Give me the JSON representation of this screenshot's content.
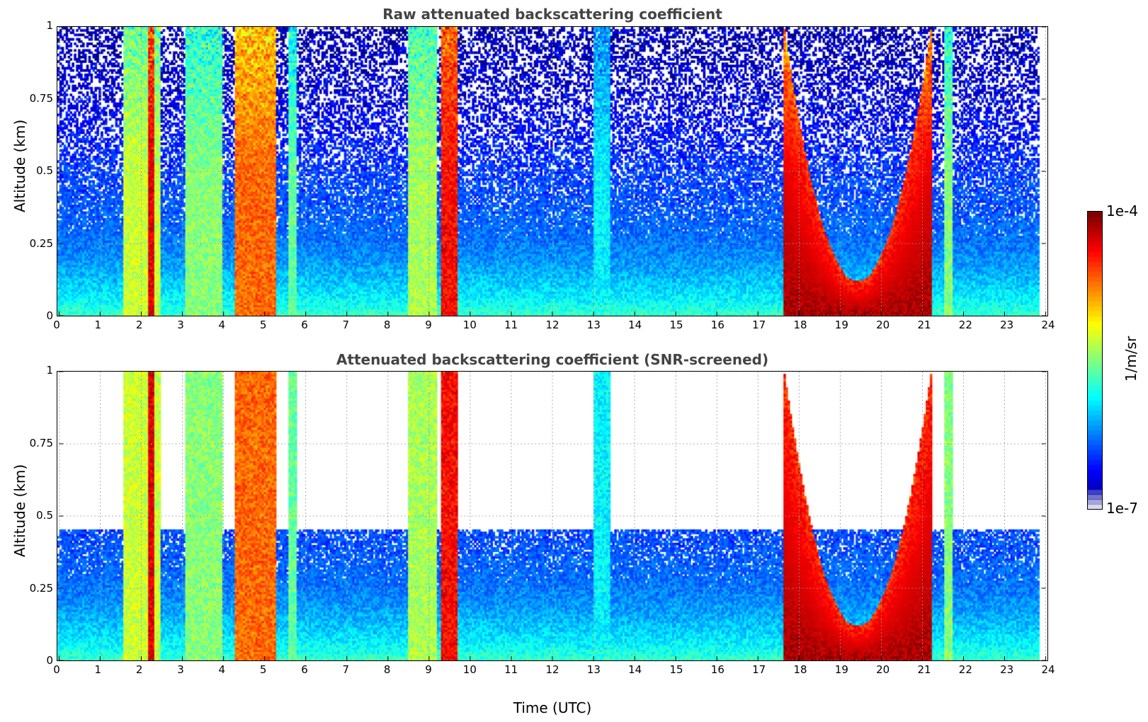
{
  "colors": {
    "jet": [
      "#00007f",
      "#0000ff",
      "#0080ff",
      "#00ffff",
      "#80ff80",
      "#ffff00",
      "#ff8000",
      "#ff0000",
      "#7f0000"
    ],
    "background": "#ffffff",
    "title_color": "#444444"
  },
  "chart_data": [
    {
      "type": "heatmap",
      "title": "Raw attenuated backscattering coefficient",
      "xlabel": "",
      "ylabel": "Altitude (km)",
      "xlim": [
        0,
        24
      ],
      "ylim": [
        0,
        1
      ],
      "xticks": [
        "0",
        "1",
        "2",
        "3",
        "4",
        "5",
        "6",
        "7",
        "8",
        "9",
        "10",
        "11",
        "12",
        "13",
        "14",
        "15",
        "16",
        "17",
        "18",
        "19",
        "20",
        "21",
        "22",
        "23",
        "24"
      ],
      "yticks": [
        "0",
        "0.25",
        "0.5",
        "0.75",
        "1"
      ],
      "grid": true,
      "screened": false,
      "data_end_hour": 23.8,
      "features": [
        {
          "kind": "aerosol_column",
          "x_start": 1.6,
          "x_end": 2.5,
          "log_level": -5.2
        },
        {
          "kind": "aerosol_column",
          "x_start": 2.2,
          "x_end": 2.35,
          "log_level": -4.2
        },
        {
          "kind": "aerosol_column",
          "x_start": 3.1,
          "x_end": 4.0,
          "log_level": -5.4
        },
        {
          "kind": "aerosol_column",
          "x_start": 4.3,
          "x_end": 5.3,
          "log_level": -4.6
        },
        {
          "kind": "aerosol_column",
          "x_start": 5.6,
          "x_end": 5.8,
          "log_level": -5.5
        },
        {
          "kind": "aerosol_column",
          "x_start": 8.5,
          "x_end": 9.2,
          "log_level": -5.3
        },
        {
          "kind": "aerosol_column",
          "x_start": 9.3,
          "x_end": 9.7,
          "log_level": -4.3
        },
        {
          "kind": "aerosol_column",
          "x_start": 21.5,
          "x_end": 21.7,
          "log_level": -5.4
        },
        {
          "kind": "cloud_bowl",
          "x_start": 17.6,
          "x_end": 21.2,
          "log_level": -4.1
        },
        {
          "kind": "thin_layer",
          "x_start": 13.0,
          "x_end": 13.4,
          "log_level": -5.9
        }
      ]
    },
    {
      "type": "heatmap",
      "title": "Attenuated backscattering coefficient (SNR-screened)",
      "xlabel": "Time (UTC)",
      "ylabel": "Altitude (km)",
      "xlim": [
        0,
        24
      ],
      "ylim": [
        0,
        1
      ],
      "xticks": [
        "0",
        "1",
        "2",
        "3",
        "4",
        "5",
        "6",
        "7",
        "8",
        "9",
        "10",
        "11",
        "12",
        "13",
        "14",
        "15",
        "16",
        "17",
        "18",
        "19",
        "20",
        "21",
        "22",
        "23",
        "24"
      ],
      "yticks": [
        "0",
        "0.25",
        "0.5",
        "0.75",
        "1"
      ],
      "grid": true,
      "screened": true,
      "data_end_hour": 23.8
    }
  ],
  "colorbar": {
    "label": "1/m/sr",
    "max_label": "1e-4",
    "min_label": "1e-7",
    "range_log": [
      -7,
      -4
    ]
  }
}
